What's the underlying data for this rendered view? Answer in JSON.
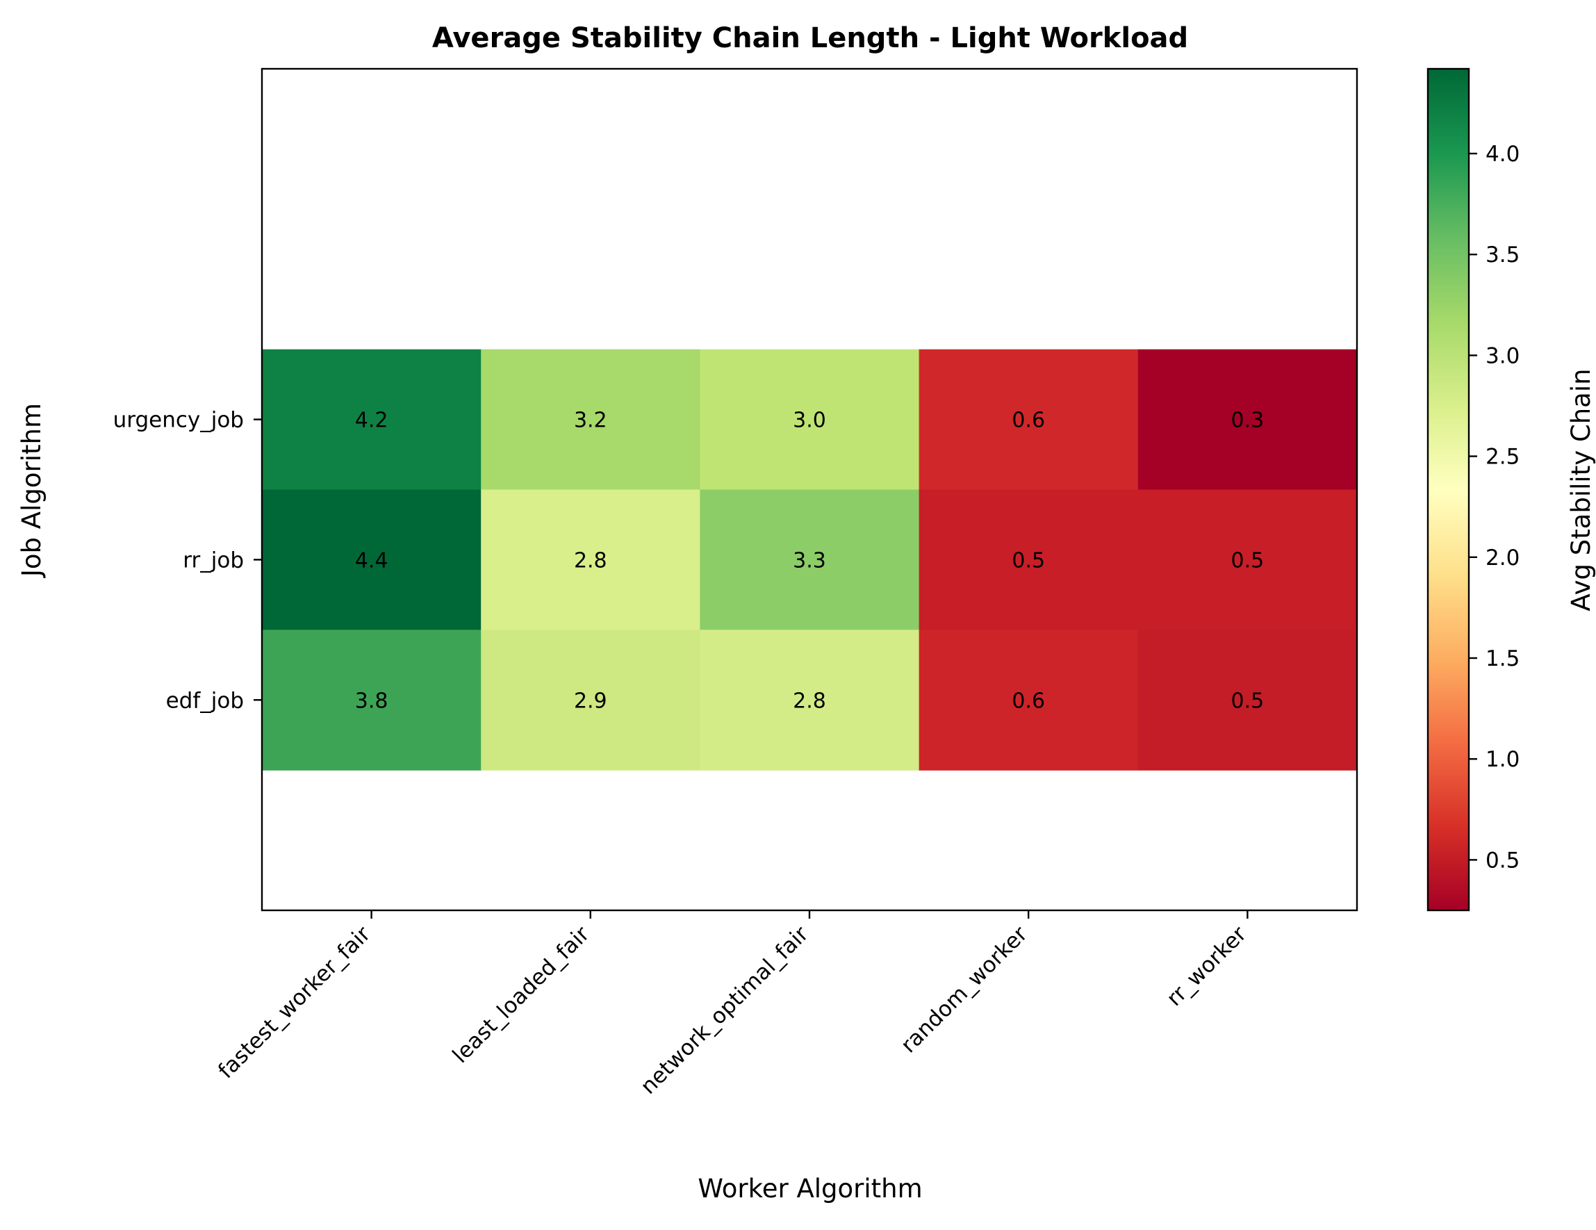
{
  "chart_data": {
    "type": "heatmap",
    "title": "Average Stability Chain Length - Light Workload",
    "xlabel": "Worker Algorithm",
    "ylabel": "Job Algorithm",
    "x_categories": [
      "fastest_worker_fair",
      "least_loaded_fair",
      "network_optimal_fair",
      "random_worker",
      "rr_worker"
    ],
    "y_categories": [
      "urgency_job",
      "rr_job",
      "edf_job"
    ],
    "values": [
      [
        4.2,
        3.2,
        3.0,
        0.6,
        0.3
      ],
      [
        4.4,
        2.8,
        3.3,
        0.5,
        0.5
      ],
      [
        3.8,
        2.9,
        2.8,
        0.6,
        0.5
      ]
    ],
    "value_labels": [
      [
        "4.2",
        "3.2",
        "3.0",
        "0.6",
        "0.3"
      ],
      [
        "4.4",
        "2.8",
        "3.3",
        "0.5",
        "0.5"
      ],
      [
        "3.8",
        "2.9",
        "2.8",
        "0.6",
        "0.5"
      ]
    ],
    "ylim": [
      -2.5,
      3.5
    ],
    "colorbar": {
      "label": "Avg Stability Chain",
      "colormap": "RdYlGn",
      "range": [
        0.25,
        4.42
      ],
      "ticks": [
        0.5,
        1.0,
        1.5,
        2.0,
        2.5,
        3.0,
        3.5,
        4.0
      ],
      "tick_labels": [
        "0.5",
        "1.0",
        "1.5",
        "2.0",
        "2.5",
        "3.0",
        "3.5",
        "4.0"
      ],
      "stops": [
        "#a50026",
        "#d73027",
        "#f46d43",
        "#fdae61",
        "#fee08b",
        "#ffffbf",
        "#d9ef8b",
        "#a6d96a",
        "#66bd63",
        "#1a9850",
        "#006837"
      ]
    },
    "cell_colors": [
      [
        "#0e8245",
        "#a7d96b",
        "#c0e473",
        "#d0282a",
        "#a50026"
      ],
      [
        "#006837",
        "#d9ef8b",
        "#8ccd67",
        "#c81e27",
        "#c81e27"
      ],
      [
        "#3da456",
        "#cee882",
        "#d4ec87",
        "#cc2429",
        "#c41d27"
      ]
    ]
  }
}
